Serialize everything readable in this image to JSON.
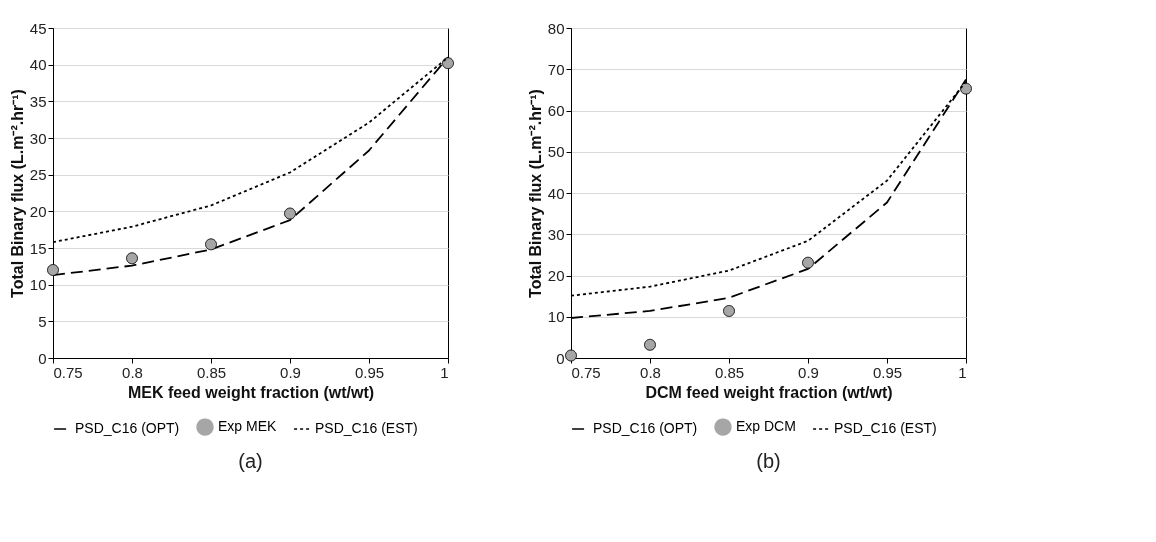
{
  "chart_data": [
    {
      "type": "line",
      "xlabel": "MEK feed weight fraction (wt/wt)",
      "ylabel": "Total Binary flux (L.m⁻².hr⁻¹)",
      "annotations": [
        "(a)"
      ],
      "xlim": [
        0.75,
        1
      ],
      "xticks": [
        0.75,
        0.8,
        0.85,
        0.9,
        0.95,
        1
      ],
      "ylim": [
        0,
        45
      ],
      "yticks": [
        0,
        5,
        10,
        15,
        20,
        25,
        30,
        35,
        40,
        45
      ],
      "grid": "y",
      "legend": "bottom",
      "series": [
        {
          "name": "PSD_C16 (OPT)",
          "line_style": "dashed",
          "color": "#000000",
          "x": [
            0.75,
            0.8,
            0.85,
            0.9,
            0.95,
            1
          ],
          "values": [
            11.3,
            12.6,
            14.8,
            18.8,
            28.3,
            41
          ]
        },
        {
          "name": "Exp MEK",
          "type": "scatter",
          "marker": "circle",
          "color": "#a6a6a6",
          "x": [
            0.75,
            0.8,
            0.85,
            0.9,
            1
          ],
          "values": [
            12.0,
            13.6,
            15.5,
            19.7,
            40.2
          ]
        },
        {
          "name": "PSD_C16 (EST)",
          "line_style": "dotted",
          "color": "#000000",
          "x": [
            0.75,
            0.8,
            0.85,
            0.9,
            0.95,
            1
          ],
          "values": [
            15.8,
            17.9,
            20.8,
            25.3,
            32.1,
            41
          ]
        }
      ]
    },
    {
      "type": "line",
      "xlabel": "DCM feed weight fraction (wt/wt)",
      "ylabel": "Total Binary flux (L.m⁻².hr⁻¹)",
      "annotations": [
        "(b)"
      ],
      "xlim": [
        0.75,
        1
      ],
      "xticks": [
        0.75,
        0.8,
        0.85,
        0.9,
        0.95,
        1
      ],
      "ylim": [
        0,
        80
      ],
      "yticks": [
        0,
        10,
        20,
        30,
        40,
        50,
        60,
        70,
        80
      ],
      "grid": "y",
      "legend": "bottom",
      "series": [
        {
          "name": "PSD_C16 (OPT)",
          "line_style": "dashed",
          "color": "#000000",
          "x": [
            0.75,
            0.8,
            0.85,
            0.9,
            0.95,
            1
          ],
          "values": [
            9.7,
            11.4,
            14.6,
            21.6,
            37.7,
            67.5
          ]
        },
        {
          "name": "Exp DCM",
          "type": "scatter",
          "marker": "circle",
          "color": "#a6a6a6",
          "x": [
            0.75,
            0.8,
            0.85,
            0.9,
            1
          ],
          "values": [
            0.6,
            3.2,
            11.4,
            23.1,
            65.3
          ]
        },
        {
          "name": "PSD_C16 (EST)",
          "line_style": "dotted",
          "color": "#000000",
          "x": [
            0.75,
            0.8,
            0.85,
            0.9,
            0.95,
            1
          ],
          "values": [
            15.1,
            17.3,
            21.2,
            28.4,
            43,
            67
          ]
        }
      ]
    }
  ]
}
